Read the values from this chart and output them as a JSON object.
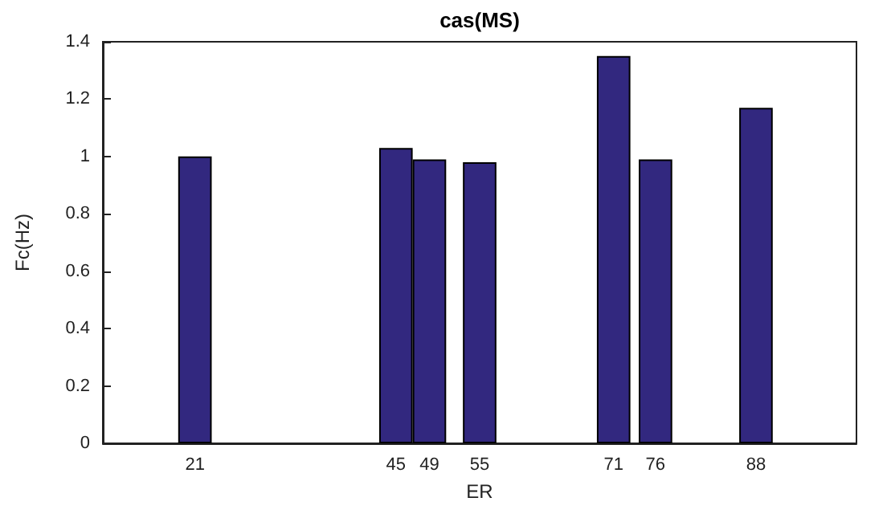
{
  "chart_data": {
    "type": "bar",
    "title": "cas(MS)",
    "xlabel": "ER",
    "ylabel": "Fc(Hz)",
    "x": [
      21,
      45,
      49,
      55,
      71,
      76,
      88
    ],
    "values": [
      1.0,
      1.03,
      0.99,
      0.98,
      1.35,
      0.99,
      1.17
    ],
    "color": "#32287f",
    "xlim": [
      10,
      100
    ],
    "xticks": [
      21,
      45,
      49,
      55,
      71,
      76,
      88
    ],
    "ylim": [
      0,
      1.4
    ],
    "yticks": [
      0,
      0.2,
      0.4,
      0.6,
      0.8,
      1,
      1.2,
      1.4
    ],
    "grid": false
  }
}
